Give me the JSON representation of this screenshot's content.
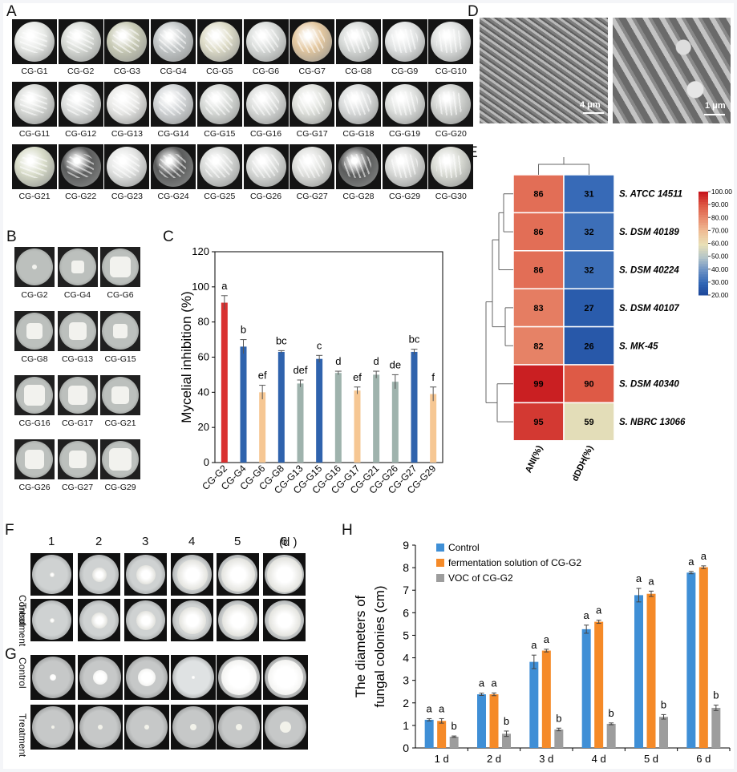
{
  "panels": {
    "A": "A",
    "B": "B",
    "C": "C",
    "D": "D",
    "E": "E",
    "F": "F",
    "G": "G",
    "H": "H"
  },
  "panel_a": {
    "labels": [
      "CG-G1",
      "CG-G2",
      "CG-G3",
      "CG-G4",
      "CG-G5",
      "CG-G6",
      "CG-G7",
      "CG-G8",
      "CG-G9",
      "CG-G10",
      "CG-G11",
      "CG-G12",
      "CG-G13",
      "CG-G14",
      "CG-G15",
      "CG-G16",
      "CG-G17",
      "CG-G18",
      "CG-G19",
      "CG-G20",
      "CG-G21",
      "CG-G22",
      "CG-G23",
      "CG-G24",
      "CG-G25",
      "CG-G26",
      "CG-G27",
      "CG-G28",
      "CG-G29",
      "CG-G30"
    ]
  },
  "panel_b": {
    "labels": [
      "CG-G2",
      "CG-G4",
      "CG-G6",
      "CG-G8",
      "CG-G13",
      "CG-G15",
      "CG-G16",
      "CG-G17",
      "CG-G21",
      "CG-G26",
      "CG-G27",
      "CG-G29"
    ]
  },
  "panel_d": {
    "scale_left": "4 μm",
    "scale_right": "1 μm"
  },
  "panel_f": {
    "days": [
      "1",
      "2",
      "3",
      "4",
      "5",
      "6"
    ],
    "day_unit": "(d )",
    "rows": [
      "Control",
      "Treatment"
    ]
  },
  "panel_g": {
    "rows": [
      "Control",
      "Treatment"
    ]
  },
  "chart_data": [
    {
      "panel": "C",
      "type": "bar",
      "ylabel": "Mycelial inhibition (%)",
      "ylim": [
        0,
        120
      ],
      "yticks": [
        0,
        20,
        40,
        60,
        80,
        100,
        120
      ],
      "categories": [
        "CG-G2",
        "CG-G4",
        "CG-G6",
        "CG-G8",
        "CG-G13",
        "CG-G15",
        "CG-G16",
        "CG-G17",
        "CG-G21",
        "CG-G26",
        "CG-G27",
        "CG-G29"
      ],
      "values": [
        91,
        66,
        40,
        63,
        45,
        59,
        51,
        41,
        50,
        46,
        63,
        39
      ],
      "errors": [
        4,
        4,
        4,
        0.7,
        2,
        2,
        1,
        2,
        2,
        4,
        1.5,
        4
      ],
      "letters": [
        "a",
        "b",
        "ef",
        "bc",
        "def",
        "c",
        "d",
        "ef",
        "d",
        "de",
        "bc",
        "f"
      ],
      "colors": [
        "#d93030",
        "#2f63ad",
        "#f6c793",
        "#2f63ad",
        "#9fb3ad",
        "#2f63ad",
        "#9fb3ad",
        "#f6c793",
        "#9fb3ad",
        "#9fb3ad",
        "#2f63ad",
        "#f6c793"
      ]
    },
    {
      "panel": "E",
      "type": "heatmap",
      "columns": [
        "ANI(%)",
        "dDDH(%)"
      ],
      "rows": [
        "S. ATCC 14511",
        "S. DSM 40189",
        "S. DSM 40224",
        "S. DSM 40107",
        "S. MK-45",
        "S. DSM 40340",
        "S. NBRC 13066"
      ],
      "values": [
        [
          86,
          31
        ],
        [
          86,
          32
        ],
        [
          86,
          32
        ],
        [
          83,
          27
        ],
        [
          82,
          26
        ],
        [
          99,
          90
        ],
        [
          95,
          59
        ]
      ],
      "colorbar": {
        "min": 20,
        "max": 100,
        "ticks": [
          "100.00",
          "90.00",
          "80.00",
          "70.00",
          "60.00",
          "50.00",
          "40.00",
          "30.00",
          "20.00"
        ]
      }
    },
    {
      "panel": "H",
      "type": "bar",
      "ylabel_line1": "The diameters of",
      "ylabel_line2": "fungal colonies (cm)",
      "ylim": [
        0,
        9
      ],
      "yticks": [
        0,
        1,
        2,
        3,
        4,
        5,
        6,
        7,
        8,
        9
      ],
      "categories": [
        "1 d",
        "2 d",
        "3 d",
        "4 d",
        "5 d",
        "6 d"
      ],
      "series": [
        {
          "name": "Control",
          "color": "#3f8fd6",
          "values": [
            1.25,
            2.38,
            3.82,
            5.27,
            6.78,
            7.78
          ],
          "errors": [
            0.05,
            0.05,
            0.3,
            0.18,
            0.3,
            0.05
          ],
          "letters": [
            "a",
            "a",
            "a",
            "a",
            "a",
            "a"
          ]
        },
        {
          "name": "fermentation solution of CG-G2",
          "color": "#f58a28",
          "values": [
            1.2,
            2.38,
            4.32,
            5.6,
            6.84,
            8.02
          ],
          "errors": [
            0.1,
            0.06,
            0.06,
            0.07,
            0.12,
            0.06
          ],
          "letters": [
            "a",
            "a",
            "a",
            "a",
            "a",
            "a"
          ]
        },
        {
          "name": "VOC of CG-G2",
          "color": "#9d9d9d",
          "values": [
            0.5,
            0.63,
            0.82,
            1.07,
            1.38,
            1.78
          ],
          "errors": [
            0.03,
            0.12,
            0.06,
            0.04,
            0.1,
            0.12
          ],
          "letters": [
            "b",
            "b",
            "b",
            "b",
            "b",
            "b"
          ]
        }
      ]
    }
  ]
}
